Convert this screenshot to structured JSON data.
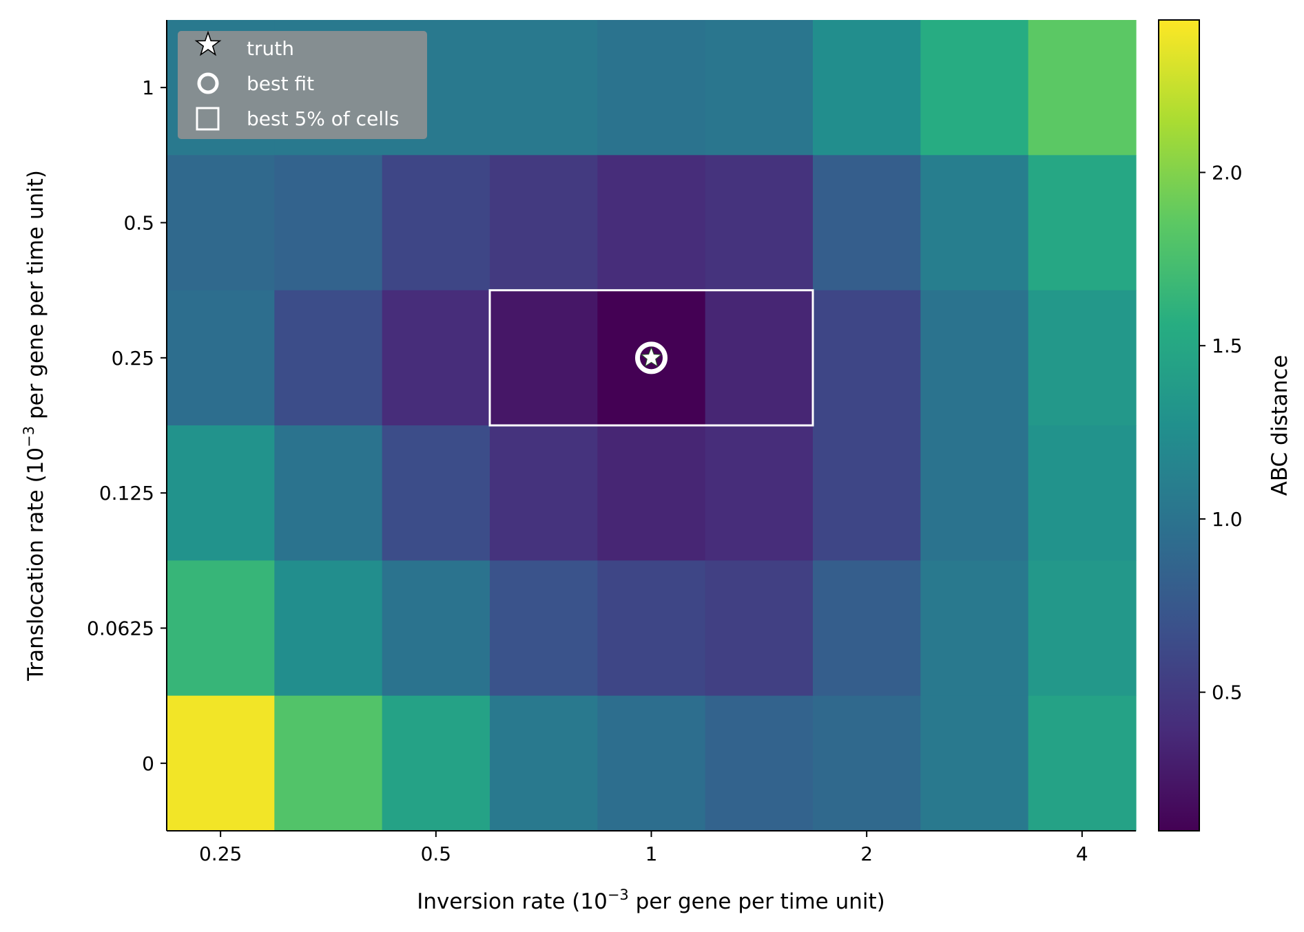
{
  "chart_data": {
    "type": "heatmap",
    "title": "",
    "xlabel": "Inversion rate (10",
    "xlabel_exp": "−3",
    "xlabel_suffix": " per gene per time unit)",
    "ylabel": "Translocation rate (10",
    "ylabel_exp": "−3",
    "ylabel_suffix": " per gene per time unit)",
    "colorbar_label": "ABC distance",
    "colormap": "viridis",
    "vmin": 0.1,
    "vmax": 2.44,
    "x_ticks": [
      "0.25",
      "0.5",
      "1",
      "2",
      "4"
    ],
    "x_tick_positions": [
      0.5,
      2.5,
      4.5,
      6.5,
      8.5
    ],
    "y_ticks": [
      "1",
      "0.5",
      "0.25",
      "0.125",
      "0.0625",
      "0"
    ],
    "colorbar_ticks": [
      "0.5",
      "1.0",
      "1.5",
      "2.0"
    ],
    "colorbar_tick_values": [
      0.5,
      1.0,
      1.5,
      2.0
    ],
    "n_cols": 9,
    "rows": [
      {
        "y": "1",
        "values": [
          1.05,
          1.05,
          1.05,
          1.05,
          1.0,
          1.02,
          1.25,
          1.55,
          1.85
        ]
      },
      {
        "y": "0.5",
        "values": [
          0.9,
          0.85,
          0.6,
          0.5,
          0.4,
          0.45,
          0.8,
          1.1,
          1.5
        ]
      },
      {
        "y": "0.25",
        "values": [
          0.95,
          0.65,
          0.4,
          0.25,
          0.1,
          0.35,
          0.6,
          1.0,
          1.35
        ]
      },
      {
        "y": "0.125",
        "values": [
          1.3,
          1.0,
          0.65,
          0.45,
          0.35,
          0.4,
          0.6,
          1.0,
          1.3
        ]
      },
      {
        "y": "0.0625",
        "values": [
          1.65,
          1.25,
          1.0,
          0.7,
          0.6,
          0.55,
          0.8,
          1.05,
          1.35
        ]
      },
      {
        "y": "0",
        "values": [
          2.4,
          1.8,
          1.45,
          1.05,
          0.95,
          0.85,
          0.9,
          1.05,
          1.45
        ]
      }
    ],
    "truth": {
      "col": 4,
      "row": "0.25"
    },
    "best_fit": {
      "col": 4,
      "row": "0.25"
    },
    "best_cells": [
      {
        "col": 3,
        "row": "0.25"
      },
      {
        "col": 4,
        "row": "0.25"
      },
      {
        "col": 5,
        "row": "0.25"
      }
    ],
    "legend": {
      "placement": "top-left",
      "items": [
        {
          "marker": "star-icon",
          "label": "truth"
        },
        {
          "marker": "circle-icon",
          "label": "best fit"
        },
        {
          "marker": "square-icon",
          "label": "best 5% of cells"
        }
      ]
    }
  }
}
